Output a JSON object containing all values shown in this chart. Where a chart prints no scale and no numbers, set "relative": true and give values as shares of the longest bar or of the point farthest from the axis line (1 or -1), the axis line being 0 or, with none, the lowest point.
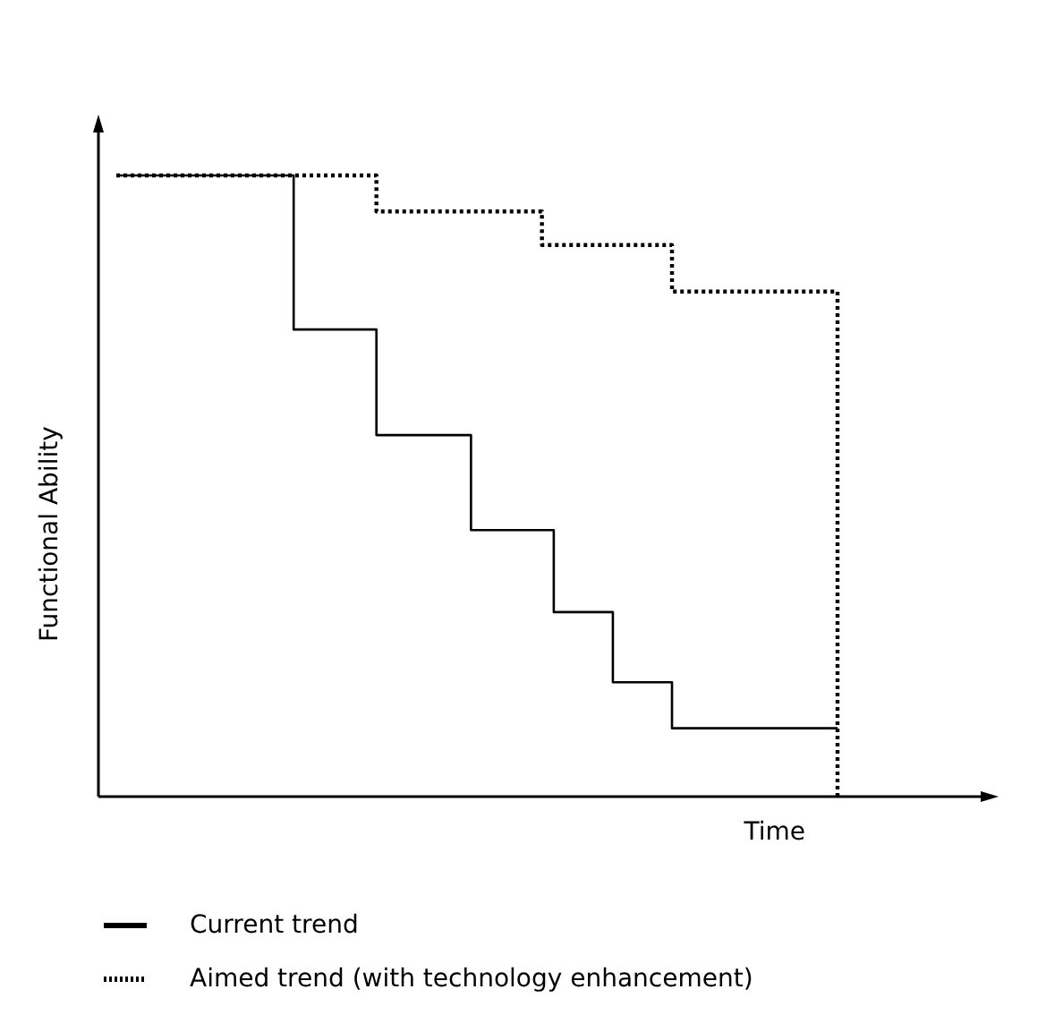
{
  "chart_data": {
    "type": "step",
    "relative": true,
    "xlabel": "Time",
    "ylabel": "Functional Ability",
    "grid": false,
    "legend": "bottom",
    "marker": "none",
    "categories": [
      null,
      null,
      null,
      null,
      null,
      null,
      null,
      null,
      null,
      null,
      null,
      null,
      null,
      null,
      null,
      null,
      null,
      null,
      null,
      null,
      null,
      null,
      null,
      null,
      null,
      null,
      null,
      null,
      null,
      null,
      null,
      null,
      null,
      null,
      null,
      null,
      null,
      null,
      null,
      null,
      null,
      null,
      null,
      null,
      null,
      null,
      null,
      null,
      null,
      null,
      null,
      null,
      null,
      null,
      null,
      null,
      null,
      null,
      null,
      null,
      null,
      null
    ],
    "series": [
      {
        "name": "Current trend",
        "color": "#000000",
        "line_style": "solid",
        "values": [
          1,
          1,
          1,
          1,
          1,
          1,
          1,
          1,
          1,
          1,
          1,
          1,
          1,
          1,
          1,
          0.752,
          0.752,
          0.752,
          0.752,
          0.752,
          0.752,
          0.752,
          0.582,
          0.582,
          0.582,
          0.582,
          0.582,
          0.582,
          0.582,
          0.582,
          0.429,
          0.429,
          0.429,
          0.429,
          0.429,
          0.429,
          0.429,
          0.297,
          0.297,
          0.297,
          0.297,
          0.297,
          0.184,
          0.184,
          0.184,
          0.184,
          0.184,
          0.11,
          0.11,
          0.11,
          0.11,
          0.11,
          0.11,
          0.11,
          0.11,
          0.11,
          0.11,
          0.11,
          0.11,
          0.11,
          0.11,
          0.11
        ]
      },
      {
        "name": "Aimed trend (with technology enhancement)",
        "color": "#000000",
        "line_style": "dotted",
        "values": [
          1,
          1,
          1,
          1,
          1,
          1,
          1,
          1,
          1,
          1,
          1,
          1,
          1,
          1,
          1,
          1,
          1,
          1,
          1,
          1,
          1,
          1,
          0.942,
          0.942,
          0.942,
          0.942,
          0.942,
          0.942,
          0.942,
          0.942,
          0.942,
          0.942,
          0.942,
          0.942,
          0.942,
          0.942,
          0.888,
          0.888,
          0.888,
          0.888,
          0.888,
          0.888,
          0.888,
          0.888,
          0.888,
          0.888,
          0.888,
          0.813,
          0.813,
          0.813,
          0.813,
          0.813,
          0.813,
          0.813,
          0.813,
          0.813,
          0.813,
          0.813,
          0.813,
          0.813,
          0.813,
          0
        ]
      }
    ]
  }
}
